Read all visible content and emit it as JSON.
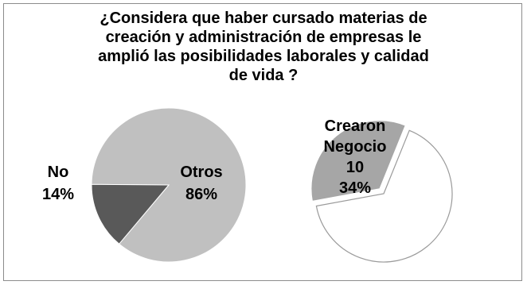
{
  "chart_data": [
    {
      "type": "pie",
      "title_lines": [
        "¿Considera que haber cursado materias de",
        "creación y administración de empresas le",
        "amplió las posibilidades laborales y calidad",
        "de vida ?"
      ],
      "slices": [
        {
          "label": "Otros",
          "value_text": "86%",
          "percent": 86,
          "color": "#c0c0c0"
        },
        {
          "label": "No",
          "value_text": "14%",
          "percent": 14,
          "color": "#595959"
        }
      ]
    },
    {
      "type": "pie",
      "slices": [
        {
          "label_lines": [
            "Crearon",
            "Negocio",
            "10"
          ],
          "value_text": "34%",
          "percent": 34,
          "color": "#a6a6a6",
          "exploded": true
        },
        {
          "label_lines": [],
          "value_text": "",
          "percent": 66,
          "color": "#ffffff",
          "exploded": false
        }
      ]
    }
  ]
}
